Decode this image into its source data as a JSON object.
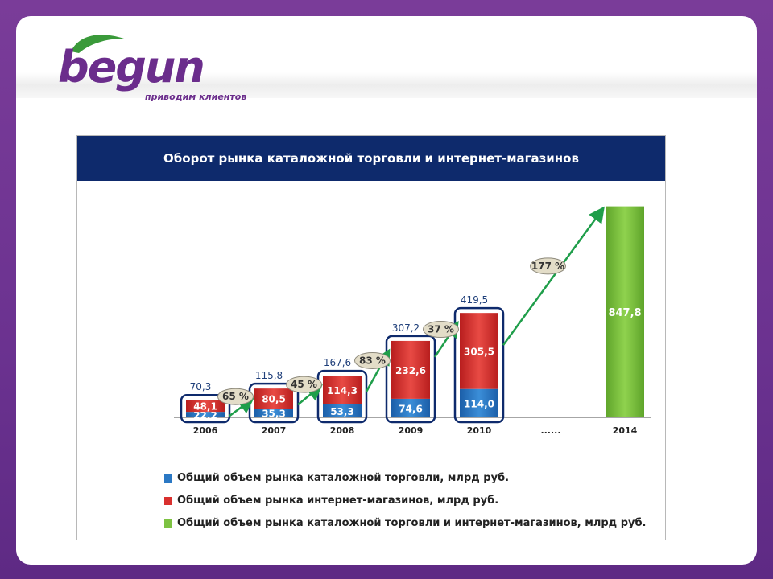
{
  "logo": {
    "text": "begun",
    "tagline": "приводим клиентов"
  },
  "chart_data": {
    "type": "bar",
    "title": "Оборот рынка каталожной торговли и интернет-магазинов",
    "categories": [
      "2006",
      "2007",
      "2008",
      "2009",
      "2010",
      "......",
      "2014"
    ],
    "series": [
      {
        "name": "Общий объем рынка каталожной торговли, млрд руб.",
        "color": "#2b78c4",
        "values": [
          22.2,
          35.3,
          53.3,
          74.6,
          114.0,
          null,
          null
        ],
        "labels": [
          "22,2",
          "35,3",
          "53,3",
          "74,6",
          "114,0",
          "",
          ""
        ]
      },
      {
        "name": "Общий объем рынка интернет-магазинов, млрд руб.",
        "color": "#d9302e",
        "values": [
          48.1,
          80.5,
          114.3,
          232.6,
          305.5,
          null,
          null
        ],
        "labels": [
          "48,1",
          "80,5",
          "114,3",
          "232,6",
          "305,5",
          "",
          ""
        ]
      },
      {
        "name": "Общий объем рынка каталожной торговли и интернет-магазинов, млрд руб.",
        "color": "#7dc242",
        "values": [
          null,
          null,
          null,
          null,
          null,
          null,
          847.8
        ],
        "labels": [
          "",
          "",
          "",
          "",
          "",
          "",
          "847,8"
        ]
      }
    ],
    "totals": [
      70.3,
      115.8,
      167.6,
      307.2,
      419.5,
      null,
      847.8
    ],
    "total_labels": [
      "70,3",
      "115,8",
      "167,6",
      "307,2",
      "419,5",
      "",
      ""
    ],
    "growth": [
      {
        "label": "65 %"
      },
      {
        "label": "45 %"
      },
      {
        "label": "83 %"
      },
      {
        "label": "37 %"
      },
      {
        "label": "177 %"
      }
    ],
    "ylim": [
      0,
      900
    ],
    "legend_position": "bottom",
    "colors": {
      "title_bg": "#0e2a6c",
      "outline": "#0e2a6c",
      "arrow": "#1f9e4a"
    }
  }
}
